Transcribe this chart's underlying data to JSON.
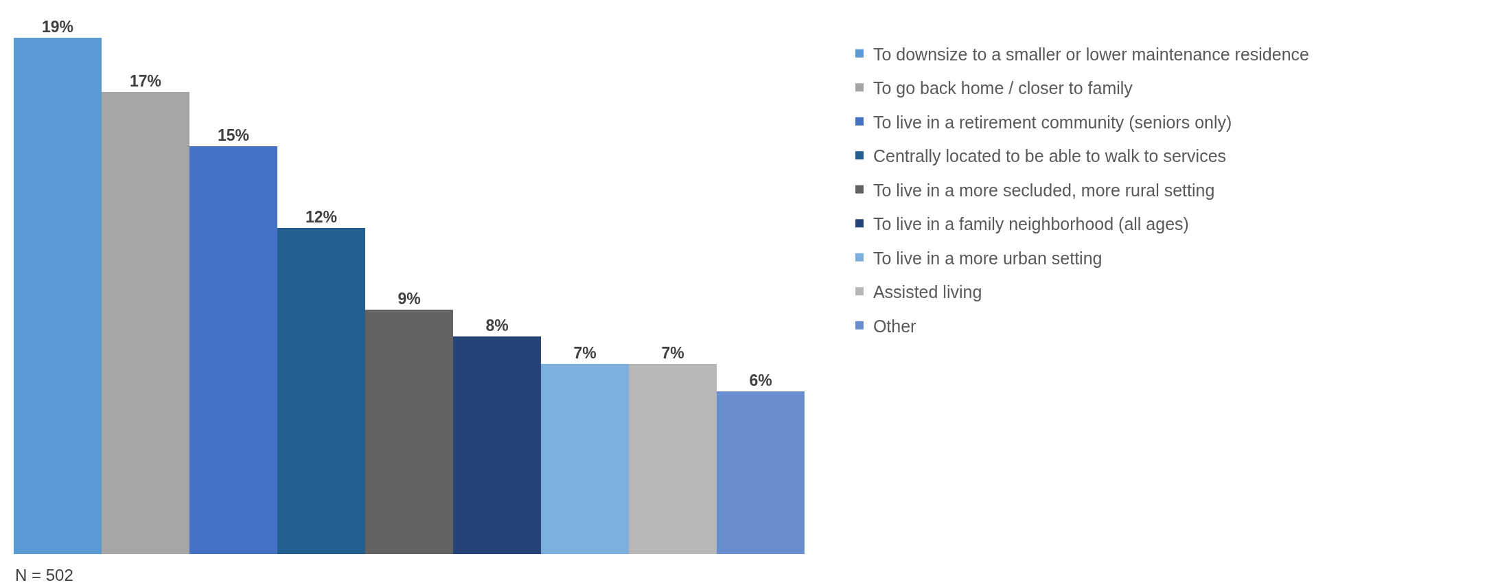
{
  "chart_data": {
    "type": "bar",
    "stacked": true,
    "categories": [
      null,
      null,
      null,
      null,
      null,
      null,
      null,
      null,
      null
    ],
    "series": [
      {
        "name": "To downsize to a smaller or lower maintenance residence",
        "color": "#5b9bd5",
        "values": [
          19,
          null,
          null,
          null,
          null,
          null,
          null,
          null,
          null
        ],
        "value_labels": [
          "19%",
          null,
          null,
          null,
          null,
          null,
          null,
          null,
          null
        ]
      },
      {
        "name": "To go back home / closer to family",
        "color": "#a5a5a5",
        "values": [
          null,
          17,
          null,
          null,
          null,
          null,
          null,
          null,
          null
        ],
        "value_labels": [
          null,
          "17%",
          null,
          null,
          null,
          null,
          null,
          null,
          null
        ]
      },
      {
        "name": "To live in a retirement community (seniors only)",
        "color": "#4472c4",
        "values": [
          null,
          null,
          15,
          null,
          null,
          null,
          null,
          null,
          null
        ],
        "value_labels": [
          null,
          null,
          "15%",
          null,
          null,
          null,
          null,
          null,
          null
        ]
      },
      {
        "name": "Centrally located to be able to walk to services",
        "color": "#255e91",
        "values": [
          null,
          null,
          null,
          12,
          null,
          null,
          null,
          null,
          null
        ],
        "value_labels": [
          null,
          null,
          null,
          "12%",
          null,
          null,
          null,
          null,
          null
        ]
      },
      {
        "name": "To live in a more secluded, more rural setting",
        "color": "#636363",
        "values": [
          null,
          null,
          null,
          null,
          9,
          null,
          null,
          null,
          null
        ],
        "value_labels": [
          null,
          null,
          null,
          null,
          "9%",
          null,
          null,
          null,
          null
        ]
      },
      {
        "name": "To live in a family neighborhood (all ages)",
        "color": "#264478",
        "values": [
          null,
          null,
          null,
          null,
          null,
          8,
          null,
          null,
          null
        ],
        "value_labels": [
          null,
          null,
          null,
          null,
          null,
          "8%",
          null,
          null,
          null
        ]
      },
      {
        "name": "To live in a more urban setting",
        "color": "#7cafdd",
        "values": [
          null,
          null,
          null,
          null,
          null,
          null,
          7,
          null,
          null
        ],
        "value_labels": [
          null,
          null,
          null,
          null,
          null,
          null,
          "7%",
          null,
          null
        ]
      },
      {
        "name": "Assisted living",
        "color": "#b7b7b7",
        "values": [
          null,
          null,
          null,
          null,
          null,
          null,
          null,
          7,
          null
        ],
        "value_labels": [
          null,
          null,
          null,
          null,
          null,
          null,
          null,
          "7%",
          null
        ]
      },
      {
        "name": "Other",
        "color": "#698ed0",
        "values": [
          null,
          null,
          null,
          null,
          null,
          null,
          null,
          null,
          6
        ],
        "value_labels": [
          null,
          null,
          null,
          null,
          null,
          null,
          null,
          null,
          "6%"
        ]
      }
    ],
    "annotations": [
      "N = 502"
    ],
    "legend": "right"
  }
}
